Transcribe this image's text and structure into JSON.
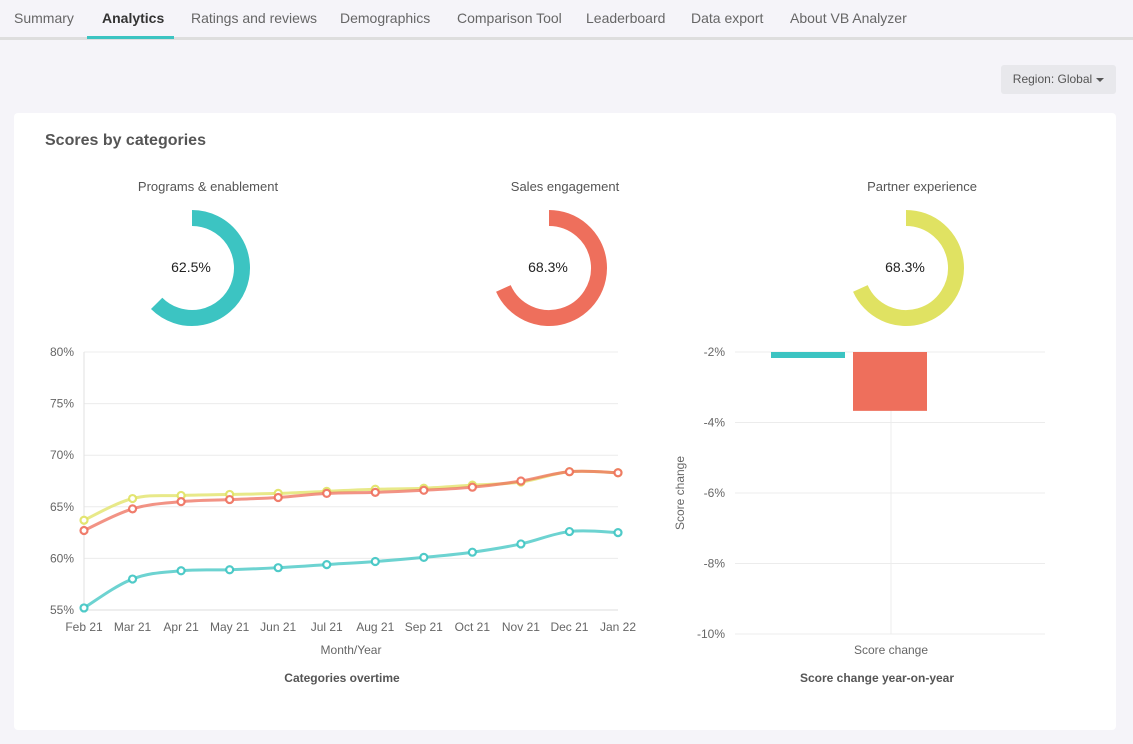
{
  "tabs": [
    {
      "label": "Summary",
      "active": false
    },
    {
      "label": "Analytics",
      "active": true
    },
    {
      "label": "Ratings and reviews",
      "active": false
    },
    {
      "label": "Demographics",
      "active": false
    },
    {
      "label": "Comparison Tool",
      "active": false
    },
    {
      "label": "Leaderboard",
      "active": false
    },
    {
      "label": "Data export",
      "active": false
    },
    {
      "label": "About VB Analyzer",
      "active": false
    }
  ],
  "region_button": {
    "label": "Region: Global",
    "icon": "caret-down-icon"
  },
  "card": {
    "title": "Scores by categories"
  },
  "colors": {
    "teal": "#3cc4c2",
    "red": "#ee6f5c",
    "yellow": "#e0e262",
    "accent": "#3cc4c2"
  },
  "chart_data": [
    {
      "type": "pie",
      "variant": "gauge",
      "title": "Programs & enablement",
      "value": 62.5,
      "label": "62.5%",
      "color": "#3cc4c2"
    },
    {
      "type": "pie",
      "variant": "gauge",
      "title": "Sales engagement",
      "value": 68.3,
      "label": "68.3%",
      "color": "#ee6f5c"
    },
    {
      "type": "pie",
      "variant": "gauge",
      "title": "Partner experience",
      "value": 68.3,
      "label": "68.3%",
      "color": "#e0e262"
    },
    {
      "type": "line",
      "title": "Categories overtime",
      "xlabel": "Month/Year",
      "ylabel": "",
      "x": [
        "Feb 21",
        "Mar 21",
        "Apr 21",
        "May 21",
        "Jun 21",
        "Jul 21",
        "Aug 21",
        "Sep 21",
        "Oct 21",
        "Nov 21",
        "Dec 21",
        "Jan 22"
      ],
      "ylim": [
        55,
        80
      ],
      "yticks": [
        80,
        75,
        70,
        65,
        60,
        55
      ],
      "ytick_labels": [
        "80%",
        "75%",
        "70%",
        "65%",
        "60%",
        "55%"
      ],
      "grid": true,
      "series": [
        {
          "name": "Partner experience",
          "color": "#e0e262",
          "values": [
            63.7,
            65.8,
            66.1,
            66.2,
            66.3,
            66.5,
            66.7,
            66.8,
            67.1,
            67.4,
            68.4,
            68.3
          ]
        },
        {
          "name": "Sales engagement",
          "color": "#ee6f5c",
          "values": [
            62.7,
            64.8,
            65.5,
            65.7,
            65.9,
            66.3,
            66.4,
            66.6,
            66.9,
            67.5,
            68.4,
            68.3
          ]
        },
        {
          "name": "Programs & enablement",
          "color": "#3cc4c2",
          "values": [
            55.2,
            58.0,
            58.8,
            58.9,
            59.1,
            59.4,
            59.7,
            60.1,
            60.6,
            61.4,
            62.6,
            62.5
          ]
        }
      ]
    },
    {
      "type": "bar",
      "title": "Score change year-on-year",
      "xlabel": "",
      "ylabel": "Score change",
      "categories": [
        "Score change"
      ],
      "ylim": [
        -10,
        -2
      ],
      "yticks": [
        -2,
        -4,
        -6,
        -8,
        -10
      ],
      "ytick_labels": [
        "-2%",
        "-4%",
        "-6%",
        "-8%",
        "-10%"
      ],
      "grid": true,
      "series": [
        {
          "name": "Programs & enablement",
          "color": "#3cc4c2",
          "values": [
            -2.17
          ]
        },
        {
          "name": "Sales engagement",
          "color": "#ee6f5c",
          "values": [
            -3.67
          ]
        }
      ]
    }
  ]
}
